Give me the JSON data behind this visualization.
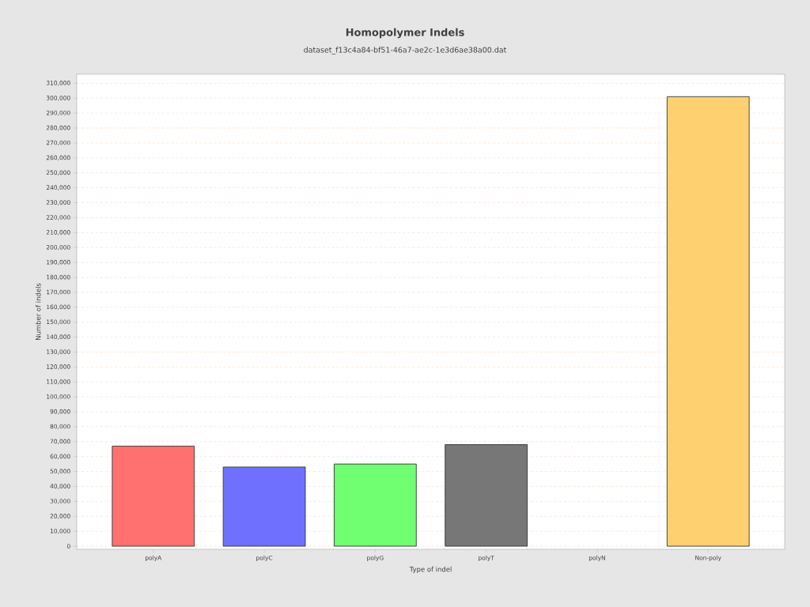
{
  "chart_data": {
    "type": "bar",
    "title": "Homopolymer Indels",
    "subtitle": "dataset_f13c4a84-bf51-46a7-ae2c-1e3d6ae38a00.dat",
    "xlabel": "Type of indel",
    "ylabel": "Number of indels",
    "categories": [
      "polyA",
      "polyC",
      "polyG",
      "polyT",
      "polyN",
      "Non-poly"
    ],
    "values": [
      67000,
      53000,
      55000,
      68000,
      null,
      301000
    ],
    "colors": [
      "#ff7070",
      "#7070ff",
      "#70ff70",
      "#777777",
      "#70c0ff",
      "#ffd070"
    ],
    "ylim": [
      0,
      316000
    ],
    "yticks": [
      {
        "value": 0,
        "label": "0"
      },
      {
        "value": 10000,
        "label": "10,000"
      },
      {
        "value": 20000,
        "label": "20,000"
      },
      {
        "value": 30000,
        "label": "30,000"
      },
      {
        "value": 40000,
        "label": "40,000"
      },
      {
        "value": 50000,
        "label": "50,000"
      },
      {
        "value": 60000,
        "label": "60,000"
      },
      {
        "value": 70000,
        "label": "70,000"
      },
      {
        "value": 80000,
        "label": "80,000"
      },
      {
        "value": 90000,
        "label": "90,000"
      },
      {
        "value": 100000,
        "label": "100,000"
      },
      {
        "value": 110000,
        "label": "110,000"
      },
      {
        "value": 120000,
        "label": "120,000"
      },
      {
        "value": 130000,
        "label": "130,000"
      },
      {
        "value": 140000,
        "label": "140,000"
      },
      {
        "value": 150000,
        "label": "150,000"
      },
      {
        "value": 160000,
        "label": "160,000"
      },
      {
        "value": 170000,
        "label": "170,000"
      },
      {
        "value": 180000,
        "label": "180,000"
      },
      {
        "value": 190000,
        "label": "190,000"
      },
      {
        "value": 200000,
        "label": "200,000"
      },
      {
        "value": 210000,
        "label": "210,000"
      },
      {
        "value": 220000,
        "label": "220,000"
      },
      {
        "value": 230000,
        "label": "230,000"
      },
      {
        "value": 240000,
        "label": "240,000"
      },
      {
        "value": 250000,
        "label": "250,000"
      },
      {
        "value": 260000,
        "label": "260,000"
      },
      {
        "value": 270000,
        "label": "270,000"
      },
      {
        "value": 280000,
        "label": "280,000"
      },
      {
        "value": 290000,
        "label": "290,000"
      },
      {
        "value": 300000,
        "label": "300,000"
      },
      {
        "value": 310000,
        "label": "310,000"
      }
    ],
    "grid": "y"
  }
}
